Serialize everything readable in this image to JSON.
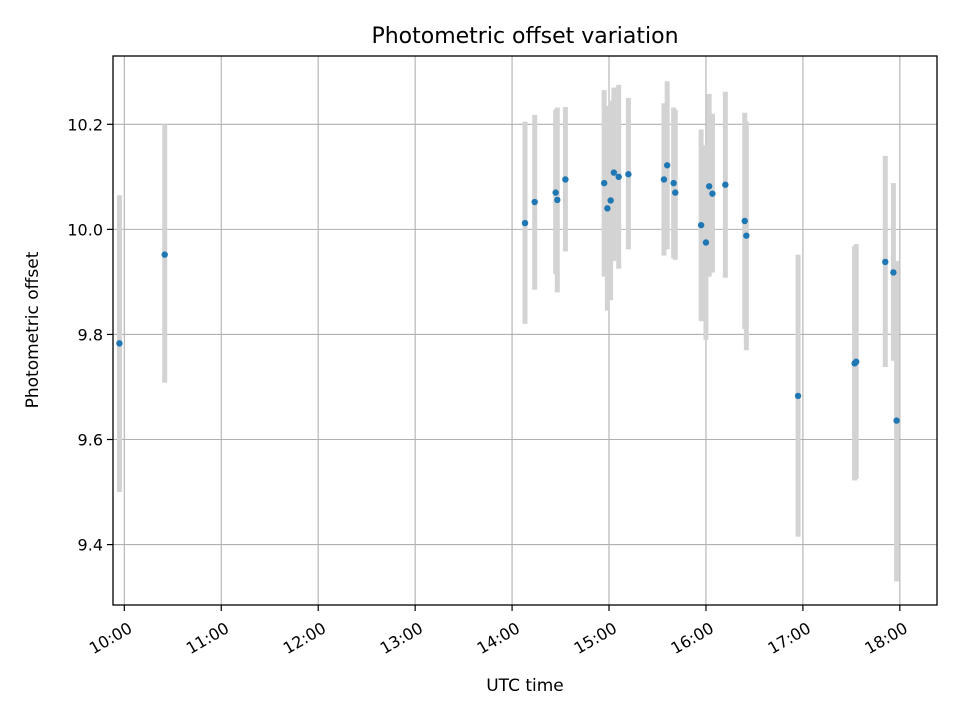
{
  "chart_data": {
    "type": "scatter",
    "title": "Photometric offset variation",
    "xlabel": "UTC time",
    "ylabel": "Photometric offset",
    "grid": true,
    "xlim": [
      "09:53",
      "18:23"
    ],
    "ylim": [
      9.285,
      10.33
    ],
    "xticks": [
      "10:00",
      "11:00",
      "12:00",
      "13:00",
      "14:00",
      "15:00",
      "16:00",
      "17:00",
      "18:00"
    ],
    "yticks": [
      9.4,
      9.6,
      9.8,
      10.0,
      10.2
    ],
    "marker_color": "#1f77b4",
    "errorbar_color": "#d3d3d3",
    "points": [
      {
        "x": "09:57",
        "y": 9.783,
        "low": 9.5,
        "high": 10.065
      },
      {
        "x": "10:25",
        "y": 9.952,
        "low": 9.708,
        "high": 10.2
      },
      {
        "x": "14:08",
        "y": 10.012,
        "low": 9.82,
        "high": 10.205
      },
      {
        "x": "14:14",
        "y": 10.052,
        "low": 9.885,
        "high": 10.218
      },
      {
        "x": "14:27",
        "y": 10.07,
        "low": 9.915,
        "high": 10.228
      },
      {
        "x": "14:28",
        "y": 10.056,
        "low": 9.88,
        "high": 10.232
      },
      {
        "x": "14:33",
        "y": 10.095,
        "low": 9.958,
        "high": 10.233
      },
      {
        "x": "14:57",
        "y": 10.088,
        "low": 9.91,
        "high": 10.265
      },
      {
        "x": "14:59",
        "y": 10.04,
        "low": 9.845,
        "high": 10.235
      },
      {
        "x": "15:01",
        "y": 10.055,
        "low": 9.865,
        "high": 10.245
      },
      {
        "x": "15:03",
        "y": 10.108,
        "low": 9.94,
        "high": 10.27
      },
      {
        "x": "15:06",
        "y": 10.1,
        "low": 9.925,
        "high": 10.275
      },
      {
        "x": "15:12",
        "y": 10.105,
        "low": 9.962,
        "high": 10.25
      },
      {
        "x": "15:34",
        "y": 10.095,
        "low": 9.95,
        "high": 10.24
      },
      {
        "x": "15:36",
        "y": 10.122,
        "low": 9.962,
        "high": 10.282
      },
      {
        "x": "15:40",
        "y": 10.088,
        "low": 9.945,
        "high": 10.232
      },
      {
        "x": "15:41",
        "y": 10.07,
        "low": 9.942,
        "high": 10.228
      },
      {
        "x": "15:57",
        "y": 10.008,
        "low": 9.825,
        "high": 10.19
      },
      {
        "x": "16:00",
        "y": 9.975,
        "low": 9.79,
        "high": 10.16
      },
      {
        "x": "16:02",
        "y": 10.082,
        "low": 9.91,
        "high": 10.258
      },
      {
        "x": "16:04",
        "y": 10.068,
        "low": 9.918,
        "high": 10.22
      },
      {
        "x": "16:12",
        "y": 10.085,
        "low": 9.908,
        "high": 10.262
      },
      {
        "x": "16:24",
        "y": 10.016,
        "low": 9.81,
        "high": 10.222
      },
      {
        "x": "16:25",
        "y": 9.988,
        "low": 9.77,
        "high": 10.205
      },
      {
        "x": "16:57",
        "y": 9.683,
        "low": 9.415,
        "high": 9.952
      },
      {
        "x": "17:32",
        "y": 9.745,
        "low": 9.522,
        "high": 9.968
      },
      {
        "x": "17:33",
        "y": 9.748,
        "low": 9.525,
        "high": 9.972
      },
      {
        "x": "17:51",
        "y": 9.938,
        "low": 9.738,
        "high": 10.14
      },
      {
        "x": "17:56",
        "y": 9.918,
        "low": 9.75,
        "high": 10.088
      },
      {
        "x": "17:58",
        "y": 9.636,
        "low": 9.33,
        "high": 9.94
      }
    ]
  }
}
